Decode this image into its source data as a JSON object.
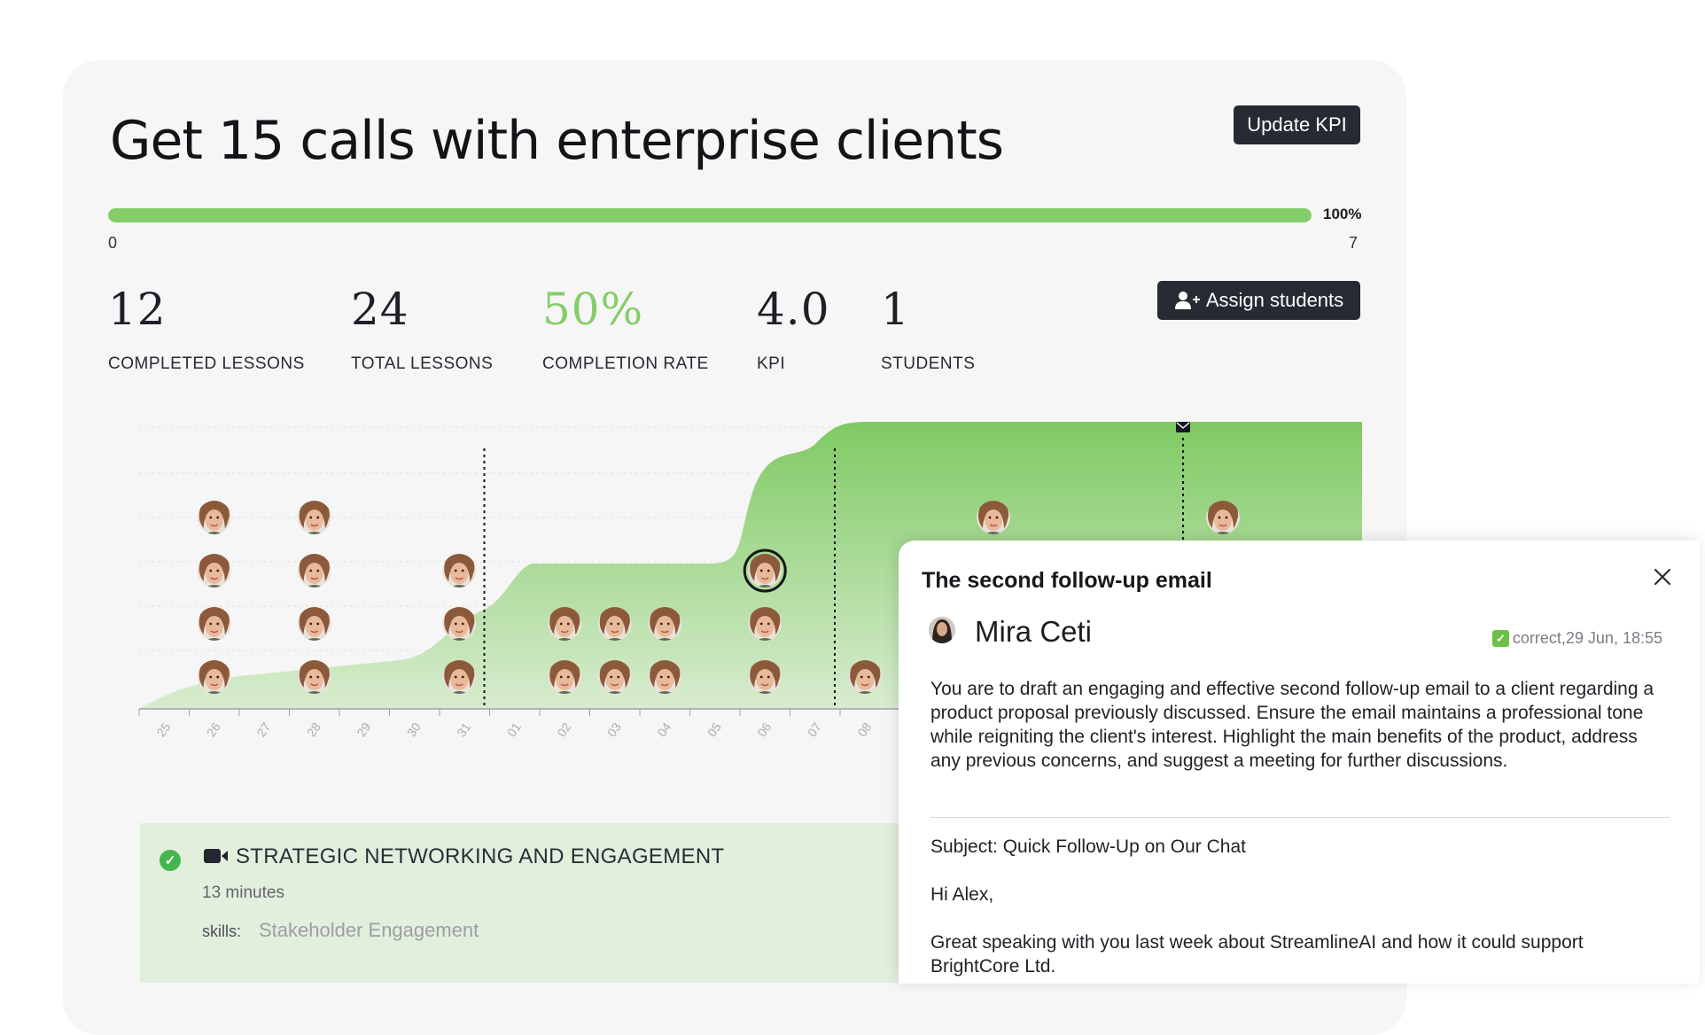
{
  "kpi": {
    "title": "Get 15 calls with enterprise clients",
    "update_label": "Update KPI",
    "assign_label": "Assign students",
    "progress": {
      "percent_label": "100%",
      "min_label": "0",
      "max_label": "7",
      "fill_fraction": 1.0
    },
    "stats": [
      {
        "value": "12",
        "label": "COMPLETED LESSONS"
      },
      {
        "value": "24",
        "label": "TOTAL LESSONS"
      },
      {
        "value": "50%",
        "label": "COMPLETION RATE"
      },
      {
        "value": "4.0",
        "label": "KPI"
      },
      {
        "value": "1",
        "label": "STUDENTS"
      }
    ]
  },
  "chart_data": {
    "type": "area",
    "x_ticks": [
      "25",
      "26",
      "27",
      "28",
      "29",
      "30",
      "31",
      "01",
      "02",
      "03",
      "04",
      "05",
      "06",
      "07",
      "08"
    ],
    "avatar_stacks": [
      {
        "tick": "26",
        "count": 4
      },
      {
        "tick": "28",
        "count": 4
      },
      {
        "tick": "31",
        "count": 3
      },
      {
        "tick": "02",
        "count": 2
      },
      {
        "tick": "03",
        "count": 2
      },
      {
        "tick": "04",
        "count": 2
      },
      {
        "tick": "06",
        "count": 3
      },
      {
        "tick": "08",
        "count": 1
      }
    ],
    "milestone_ticks": [
      "31",
      "07"
    ],
    "accent_color": "#85cd69"
  },
  "lesson": {
    "title": "STRATEGIC NETWORKING AND ENGAGEMENT",
    "duration": "13 minutes",
    "skills_label": "skills:",
    "skills_value": "Stakeholder Engagement"
  },
  "popup": {
    "title": "The second follow-up email",
    "user_name": "Mira Ceti",
    "status": "correct,29 Jun, 18:55",
    "prompt": "You are to draft an engaging and effective second follow-up email to a client regarding a product proposal previously discussed. Ensure the email maintains a professional tone while reigniting the client's interest. Highlight the main benefits of the product, address any previous concerns, and suggest a meeting for further discussions.",
    "subject": "Subject: Quick Follow-Up on Our Chat",
    "greeting": "Hi Alex,",
    "body_line1": "Great speaking with you last week about StreamlineAI and how it could support",
    "body_line2": "BrightCore Ltd."
  }
}
